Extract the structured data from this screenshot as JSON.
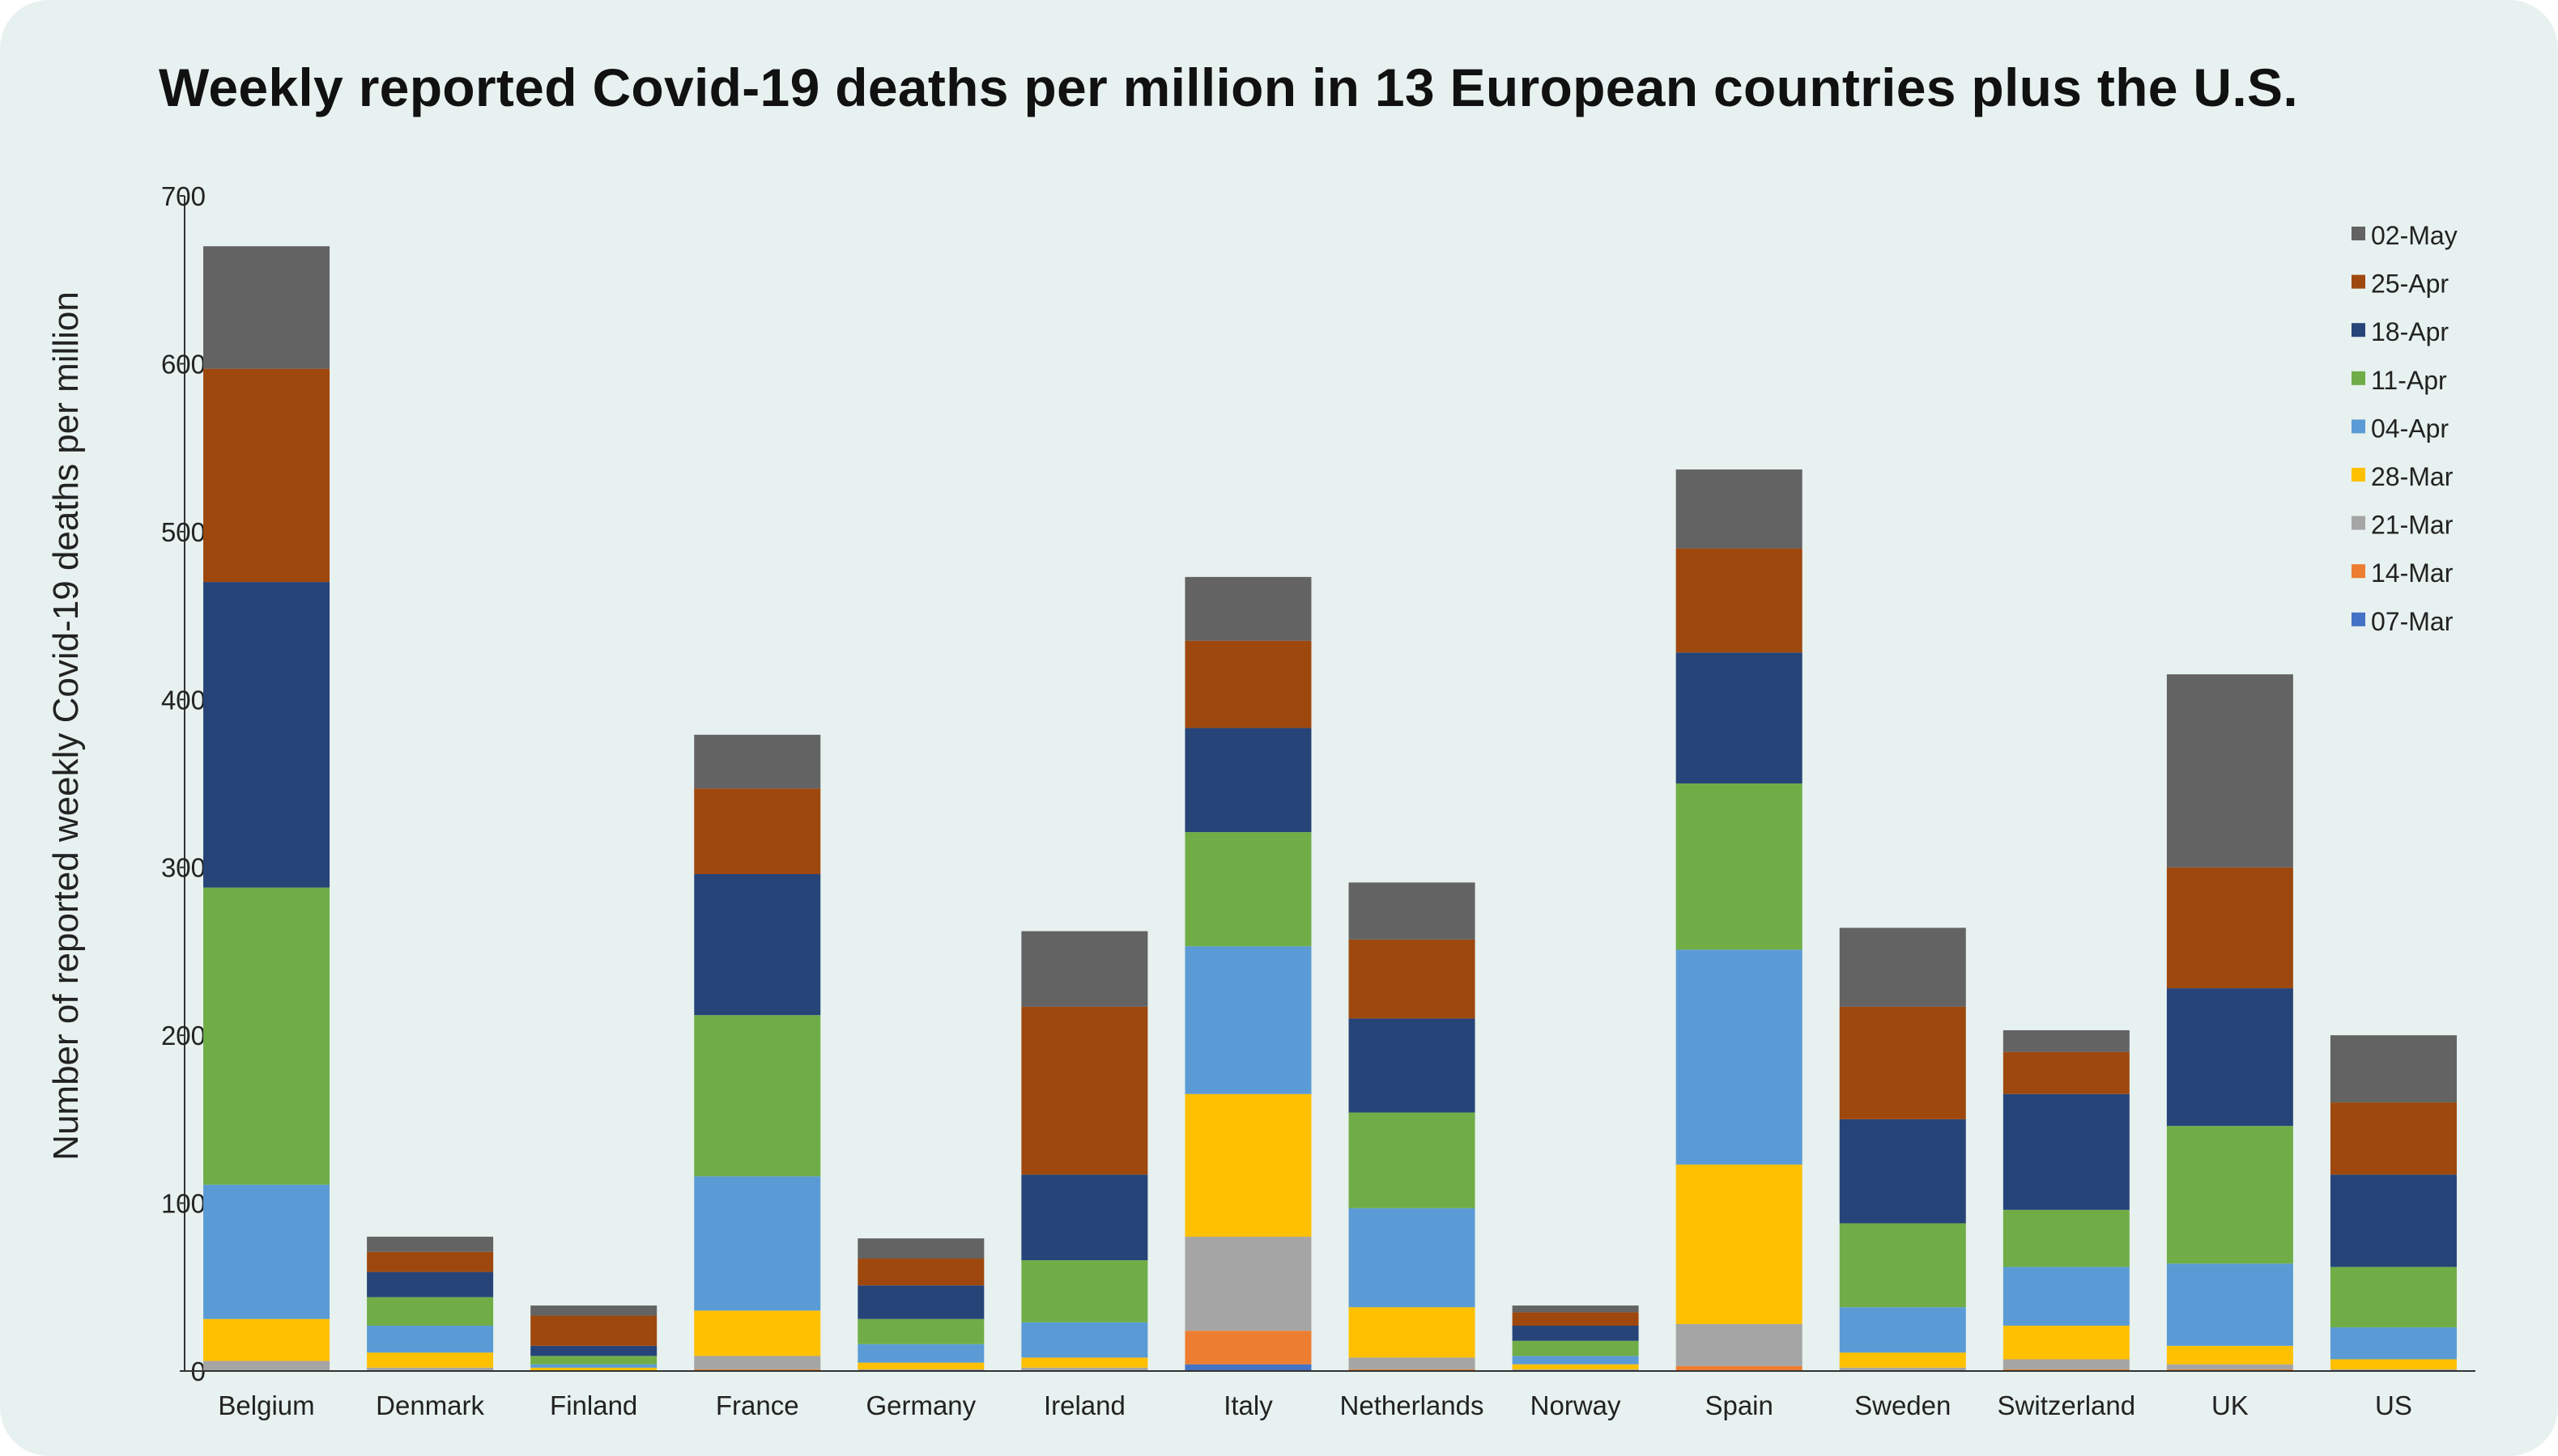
{
  "chart_data": {
    "type": "bar",
    "stacked": true,
    "title": "Weekly reported Covid-19 deaths per million in 13 European countries plus the U.S.",
    "xlabel": "",
    "ylabel": "Number of reported weekly Covid-19 deaths per million",
    "ylim": [
      0,
      700
    ],
    "yticks": [
      0,
      100,
      200,
      300,
      400,
      500,
      600,
      700
    ],
    "grid": false,
    "legend_position": "top-right",
    "categories": [
      "Belgium",
      "Denmark",
      "Finland",
      "France",
      "Germany",
      "Ireland",
      "Italy",
      "Netherlands",
      "Norway",
      "Spain",
      "Sweden",
      "Switzerland",
      "UK",
      "US"
    ],
    "series": [
      {
        "name": "07-Mar",
        "color": "#4472c4",
        "values": [
          0,
          0,
          0,
          0,
          0,
          0,
          4,
          0,
          0,
          0,
          0,
          0,
          0,
          0
        ]
      },
      {
        "name": "14-Mar",
        "color": "#ed7d31",
        "values": [
          0,
          0,
          0,
          1,
          0,
          0,
          20,
          1,
          0,
          3,
          0,
          1,
          1,
          0
        ]
      },
      {
        "name": "21-Mar",
        "color": "#a5a5a5",
        "values": [
          6,
          2,
          0,
          8,
          1,
          2,
          56,
          7,
          1,
          25,
          2,
          6,
          3,
          1
        ]
      },
      {
        "name": "28-Mar",
        "color": "#ffc000",
        "values": [
          25,
          9,
          2,
          27,
          4,
          6,
          85,
          30,
          3,
          95,
          9,
          20,
          11,
          6
        ]
      },
      {
        "name": "04-Apr",
        "color": "#5b9bd5",
        "values": [
          80,
          16,
          2,
          80,
          11,
          21,
          88,
          59,
          5,
          128,
          27,
          35,
          49,
          19
        ]
      },
      {
        "name": "11-Apr",
        "color": "#70ad47",
        "values": [
          177,
          17,
          5,
          96,
          15,
          37,
          68,
          57,
          9,
          99,
          50,
          34,
          82,
          36
        ]
      },
      {
        "name": "18-Apr",
        "color": "#264478",
        "values": [
          182,
          15,
          6,
          84,
          20,
          51,
          62,
          56,
          9,
          78,
          62,
          69,
          82,
          55
        ]
      },
      {
        "name": "25-Apr",
        "color": "#9e480e",
        "values": [
          127,
          12,
          18,
          51,
          16,
          100,
          52,
          47,
          8,
          62,
          67,
          25,
          72,
          43
        ]
      },
      {
        "name": "02-May",
        "color": "#636363",
        "values": [
          73,
          9,
          6,
          32,
          12,
          45,
          38,
          34,
          4,
          47,
          47,
          13,
          115,
          40
        ]
      }
    ]
  }
}
